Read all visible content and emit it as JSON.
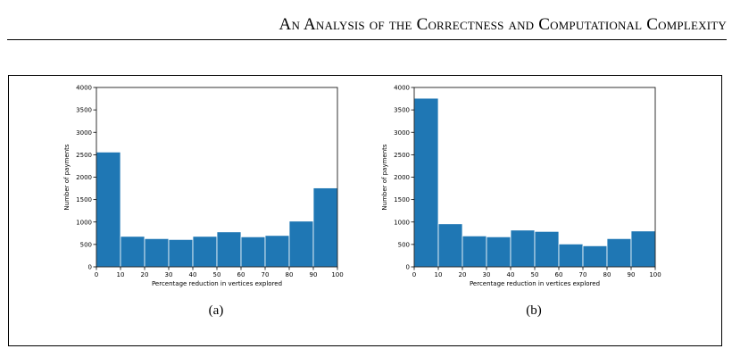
{
  "header": {
    "title": "An Analysis of the Correctness and Computational Complexity"
  },
  "colors": {
    "bar": "#1f77b4",
    "axis": "#000000"
  },
  "captions": [
    "(a)",
    "(b)"
  ],
  "chart_data": [
    {
      "type": "bar",
      "title": "",
      "xlabel": "Percentage reduction in vertices explored",
      "ylabel": "Number of payments",
      "xlim": [
        0,
        100
      ],
      "ylim": [
        0,
        4000
      ],
      "xticks": [
        0,
        10,
        20,
        30,
        40,
        50,
        60,
        70,
        80,
        90,
        100
      ],
      "yticks": [
        0,
        500,
        1000,
        1500,
        2000,
        2500,
        3000,
        3500,
        4000
      ],
      "grid": false,
      "bins": [
        [
          0,
          10
        ],
        [
          10,
          20
        ],
        [
          20,
          30
        ],
        [
          30,
          40
        ],
        [
          40,
          50
        ],
        [
          50,
          60
        ],
        [
          60,
          70
        ],
        [
          70,
          80
        ],
        [
          80,
          90
        ],
        [
          90,
          100
        ]
      ],
      "values": [
        2560,
        680,
        630,
        610,
        680,
        780,
        670,
        700,
        1020,
        1760
      ]
    },
    {
      "type": "bar",
      "title": "",
      "xlabel": "Percentage reduction in vertices explored",
      "ylabel": "Number of payments",
      "xlim": [
        0,
        100
      ],
      "ylim": [
        0,
        4000
      ],
      "xticks": [
        0,
        10,
        20,
        30,
        40,
        50,
        60,
        70,
        80,
        90,
        100
      ],
      "yticks": [
        0,
        500,
        1000,
        1500,
        2000,
        2500,
        3000,
        3500,
        4000
      ],
      "grid": false,
      "bins": [
        [
          0,
          10
        ],
        [
          10,
          20
        ],
        [
          20,
          30
        ],
        [
          30,
          40
        ],
        [
          40,
          50
        ],
        [
          50,
          60
        ],
        [
          60,
          70
        ],
        [
          70,
          80
        ],
        [
          80,
          90
        ],
        [
          90,
          100
        ]
      ],
      "values": [
        3760,
        960,
        690,
        670,
        820,
        790,
        510,
        470,
        630,
        800
      ]
    }
  ]
}
